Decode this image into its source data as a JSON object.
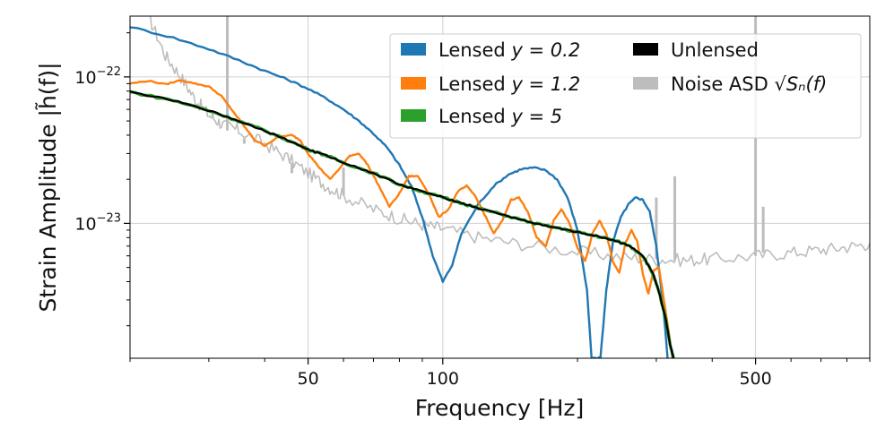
{
  "chart_data": {
    "type": "line",
    "title": "",
    "xlabel": "Frequency [Hz]",
    "ylabel": "Strain Amplitude |h̃(f)|",
    "xscale": "log",
    "yscale": "log",
    "xlim": [
      20,
      900
    ],
    "ylim": [
      1.2e-24,
      2.6e-22
    ],
    "grid": true,
    "legend_position": "top-right",
    "x_ticks": [
      {
        "value": 50,
        "label": "50"
      },
      {
        "value": 100,
        "label": "100"
      },
      {
        "value": 500,
        "label": "500"
      }
    ],
    "y_ticks": [
      {
        "value": 1e-22,
        "base": "10",
        "exp": "−22"
      },
      {
        "value": 1e-23,
        "base": "10",
        "exp": "−23"
      }
    ],
    "series": [
      {
        "name": "Noise ASD",
        "legend_label": "Noise ASD",
        "legend_math": "√Sₙ(f)",
        "color": "#bdbdbd",
        "points": [
          [
            22,
            2.6e-22
          ],
          [
            24,
            1.4e-22
          ],
          [
            26,
            1e-22
          ],
          [
            28,
            7e-23
          ],
          [
            30,
            5.5e-23
          ],
          [
            32,
            4.8e-23
          ],
          [
            35,
            4.3e-23
          ],
          [
            40,
            3.5e-23
          ],
          [
            45,
            2.8e-23
          ],
          [
            50,
            2.2e-23
          ],
          [
            55,
            1.8e-23
          ],
          [
            60,
            1.55e-23
          ],
          [
            70,
            1.25e-23
          ],
          [
            80,
            1.08e-23
          ],
          [
            90,
            9.8e-24
          ],
          [
            100,
            9.2e-24
          ],
          [
            120,
            8e-24
          ],
          [
            150,
            7.2e-24
          ],
          [
            200,
            6.4e-24
          ],
          [
            250,
            5.9e-24
          ],
          [
            300,
            5.7e-24
          ],
          [
            350,
            5.6e-24
          ],
          [
            400,
            5.7e-24
          ],
          [
            500,
            6e-24
          ],
          [
            600,
            6.3e-24
          ],
          [
            700,
            6.6e-24
          ],
          [
            800,
            6.9e-24
          ],
          [
            900,
            7.3e-24
          ]
        ],
        "spikes": [
          [
            33,
            2.6e-22
          ],
          [
            36,
            3.8e-23
          ],
          [
            41,
            2.8e-23
          ],
          [
            46,
            2.6e-23
          ],
          [
            60,
            2.4e-23
          ],
          [
            300,
            1.5e-23
          ],
          [
            330,
            2.1e-23
          ],
          [
            500,
            2.6e-22
          ],
          [
            520,
            1.3e-23
          ]
        ]
      },
      {
        "name": "Lensed y = 0.2",
        "legend_label": "Lensed ",
        "legend_math": "y = 0.2",
        "color": "#1f77b4",
        "points": [
          [
            20,
            2.2e-22
          ],
          [
            25,
            1.85e-22
          ],
          [
            30,
            1.55e-22
          ],
          [
            35,
            1.3e-22
          ],
          [
            40,
            1.1e-22
          ],
          [
            45,
            9.6e-23
          ],
          [
            50,
            8.3e-23
          ],
          [
            55,
            7.1e-23
          ],
          [
            60,
            6e-23
          ],
          [
            65,
            5e-23
          ],
          [
            70,
            4.1e-23
          ],
          [
            75,
            3.3e-23
          ],
          [
            80,
            2.5e-23
          ],
          [
            85,
            1.8e-23
          ],
          [
            90,
            1.1e-23
          ],
          [
            95,
            6e-24
          ],
          [
            100,
            4e-24
          ],
          [
            105,
            5.2e-24
          ],
          [
            110,
            8.5e-24
          ],
          [
            120,
            1.35e-23
          ],
          [
            130,
            1.8e-23
          ],
          [
            140,
            2.15e-23
          ],
          [
            150,
            2.35e-23
          ],
          [
            160,
            2.4e-23
          ],
          [
            170,
            2.3e-23
          ],
          [
            180,
            2e-23
          ],
          [
            190,
            1.5e-23
          ],
          [
            200,
            9e-24
          ],
          [
            210,
            3.5e-24
          ],
          [
            215,
            1.2e-24
          ],
          [
            225,
            1.2e-24
          ],
          [
            232,
            3.5e-24
          ],
          [
            240,
            7.5e-24
          ],
          [
            250,
            1.1e-23
          ],
          [
            260,
            1.35e-23
          ],
          [
            270,
            1.5e-23
          ],
          [
            280,
            1.45e-23
          ],
          [
            290,
            1.2e-23
          ],
          [
            300,
            7e-24
          ],
          [
            310,
            3e-24
          ],
          [
            318,
            1.2e-24
          ]
        ]
      },
      {
        "name": "Lensed y = 1.2",
        "legend_label": "Lensed ",
        "legend_math": "y = 1.2",
        "color": "#ff7f0e",
        "points": [
          [
            20,
            9e-23
          ],
          [
            22,
            9.4e-23
          ],
          [
            24,
            8.9e-23
          ],
          [
            26,
            9.5e-23
          ],
          [
            28,
            9e-23
          ],
          [
            30,
            8.6e-23
          ],
          [
            32,
            7.4e-23
          ],
          [
            34,
            5.8e-23
          ],
          [
            36,
            4.6e-23
          ],
          [
            38,
            3.7e-23
          ],
          [
            40,
            3.4e-23
          ],
          [
            43,
            3.9e-23
          ],
          [
            46,
            4e-23
          ],
          [
            48,
            3.7e-23
          ],
          [
            50,
            3e-23
          ],
          [
            53,
            2.4e-23
          ],
          [
            56,
            2e-23
          ],
          [
            59,
            2.4e-23
          ],
          [
            62,
            2.9e-23
          ],
          [
            65,
            3e-23
          ],
          [
            68,
            2.5e-23
          ],
          [
            72,
            1.8e-23
          ],
          [
            76,
            1.3e-23
          ],
          [
            80,
            1.6e-23
          ],
          [
            84,
            2.1e-23
          ],
          [
            88,
            2.1e-23
          ],
          [
            93,
            1.6e-23
          ],
          [
            98,
            1.1e-23
          ],
          [
            103,
            1.25e-23
          ],
          [
            108,
            1.65e-23
          ],
          [
            113,
            1.8e-23
          ],
          [
            118,
            1.55e-23
          ],
          [
            124,
            1.15e-23
          ],
          [
            130,
            8.5e-24
          ],
          [
            136,
            1.05e-23
          ],
          [
            142,
            1.45e-23
          ],
          [
            148,
            1.5e-23
          ],
          [
            155,
            1.2e-23
          ],
          [
            162,
            8e-24
          ],
          [
            170,
            7e-24
          ],
          [
            177,
            1.05e-23
          ],
          [
            184,
            1.25e-23
          ],
          [
            192,
            1e-23
          ],
          [
            200,
            6.8e-24
          ],
          [
            208,
            5.5e-24
          ],
          [
            216,
            8.5e-24
          ],
          [
            224,
            1.05e-23
          ],
          [
            232,
            8.5e-24
          ],
          [
            240,
            5.5e-24
          ],
          [
            248,
            4.6e-24
          ],
          [
            256,
            7.3e-24
          ],
          [
            264,
            9e-24
          ],
          [
            272,
            7.5e-24
          ],
          [
            280,
            4.5e-24
          ],
          [
            288,
            3.3e-24
          ],
          [
            296,
            4.8e-24
          ],
          [
            304,
            5e-24
          ],
          [
            312,
            3e-24
          ],
          [
            320,
            1.8e-24
          ],
          [
            326,
            1.2e-24
          ]
        ]
      },
      {
        "name": "Lensed y = 5",
        "legend_label": "Lensed ",
        "legend_math": "y = 5",
        "color": "#2ca02c",
        "points": [
          [
            20,
            7.9e-23
          ],
          [
            25,
            6.9e-23
          ],
          [
            30,
            5.9e-23
          ],
          [
            35,
            5e-23
          ],
          [
            40,
            4.3e-23
          ],
          [
            45,
            3.7e-23
          ],
          [
            50,
            3.2e-23
          ],
          [
            55,
            2.9e-23
          ],
          [
            60,
            2.6e-23
          ],
          [
            70,
            2.2e-23
          ],
          [
            80,
            1.85e-23
          ],
          [
            90,
            1.65e-23
          ],
          [
            100,
            1.5e-23
          ],
          [
            110,
            1.38e-23
          ],
          [
            120,
            1.27e-23
          ],
          [
            140,
            1.12e-23
          ],
          [
            160,
            1e-23
          ],
          [
            180,
            9.3e-24
          ],
          [
            200,
            8.7e-24
          ],
          [
            220,
            8.2e-24
          ],
          [
            240,
            7.7e-24
          ],
          [
            260,
            7.1e-24
          ],
          [
            280,
            6e-24
          ],
          [
            295,
            4.5e-24
          ],
          [
            305,
            3.3e-24
          ],
          [
            315,
            2.2e-24
          ],
          [
            322,
            1.5e-24
          ],
          [
            328,
            1.2e-24
          ]
        ]
      },
      {
        "name": "Unlensed",
        "legend_label": "Unlensed",
        "legend_math": "",
        "color": "#000000",
        "points": [
          [
            20,
            7.9e-23
          ],
          [
            25,
            6.9e-23
          ],
          [
            30,
            5.9e-23
          ],
          [
            35,
            5e-23
          ],
          [
            40,
            4.3e-23
          ],
          [
            45,
            3.7e-23
          ],
          [
            50,
            3.2e-23
          ],
          [
            55,
            2.9e-23
          ],
          [
            60,
            2.6e-23
          ],
          [
            70,
            2.2e-23
          ],
          [
            80,
            1.85e-23
          ],
          [
            90,
            1.65e-23
          ],
          [
            100,
            1.5e-23
          ],
          [
            110,
            1.38e-23
          ],
          [
            120,
            1.27e-23
          ],
          [
            140,
            1.12e-23
          ],
          [
            160,
            1e-23
          ],
          [
            180,
            9.3e-24
          ],
          [
            200,
            8.7e-24
          ],
          [
            220,
            8.2e-24
          ],
          [
            240,
            7.7e-24
          ],
          [
            260,
            7.1e-24
          ],
          [
            280,
            6e-24
          ],
          [
            295,
            4.5e-24
          ],
          [
            305,
            3.3e-24
          ],
          [
            315,
            2.2e-24
          ],
          [
            322,
            1.5e-24
          ],
          [
            328,
            1.2e-24
          ]
        ]
      }
    ],
    "legend": [
      {
        "series_index": 1,
        "column": 0,
        "row": 0
      },
      {
        "series_index": 2,
        "column": 0,
        "row": 1
      },
      {
        "series_index": 3,
        "column": 0,
        "row": 2
      },
      {
        "series_index": 4,
        "column": 1,
        "row": 0
      },
      {
        "series_index": 0,
        "column": 1,
        "row": 1
      }
    ]
  }
}
